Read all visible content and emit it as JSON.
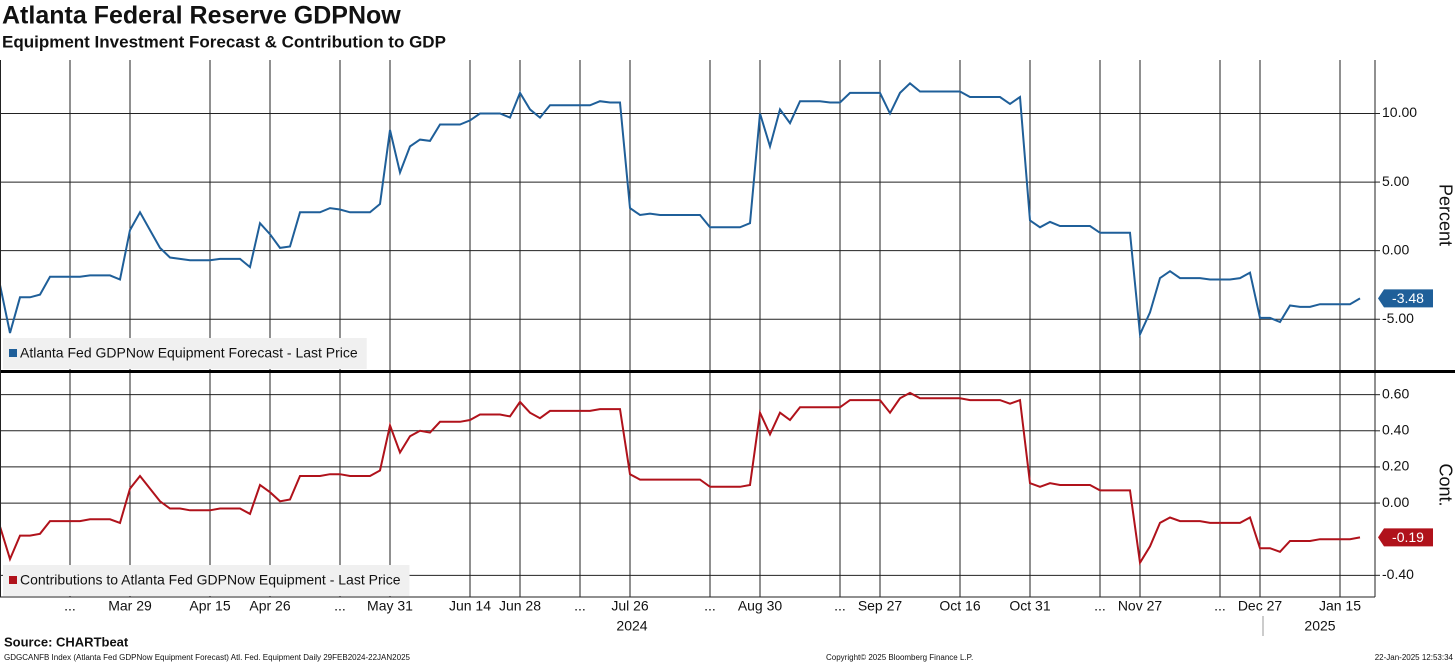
{
  "chart_data": [
    {
      "type": "line",
      "title": "Atlanta Federal Reserve GDPNow",
      "subtitle": "Equipment Investment Forecast & Contribution to GDP",
      "ylabel": "Percent",
      "ylim": [
        -8.7,
        13.9
      ],
      "yticks": [
        {
          "value": -5,
          "label": "-5.00"
        },
        {
          "value": 0,
          "label": "0.00"
        },
        {
          "value": 5,
          "label": "5.00"
        },
        {
          "value": 10,
          "label": "10.00"
        }
      ],
      "grid": true,
      "legend": "lower left",
      "series": [
        {
          "name": "Atlanta Fed GDPNow Equipment Forecast - Last Price",
          "color": "#1f5f99",
          "values": [
            -2.5,
            -6.0,
            -3.4,
            -3.4,
            -3.2,
            -1.9,
            -1.9,
            -1.9,
            -1.9,
            -1.8,
            -1.8,
            -1.8,
            -2.1,
            1.5,
            2.8,
            1.5,
            0.2,
            -0.5,
            -0.6,
            -0.7,
            -0.7,
            -0.7,
            -0.6,
            -0.6,
            -0.6,
            -1.2,
            2.0,
            1.2,
            0.2,
            0.3,
            2.8,
            2.8,
            2.8,
            3.1,
            3.0,
            2.8,
            2.8,
            2.8,
            3.4,
            8.8,
            5.7,
            7.6,
            8.1,
            8.0,
            9.2,
            9.2,
            9.2,
            9.5,
            10.0,
            10.0,
            10.0,
            9.7,
            11.5,
            10.3,
            9.7,
            10.6,
            10.6,
            10.6,
            10.6,
            10.6,
            10.9,
            10.8,
            10.8,
            3.1,
            2.6,
            2.7,
            2.6,
            2.6,
            2.6,
            2.6,
            2.6,
            1.7,
            1.7,
            1.7,
            1.7,
            2.0,
            10.0,
            7.6,
            10.3,
            9.3,
            10.9,
            10.9,
            10.9,
            10.8,
            10.8,
            11.5,
            11.5,
            11.5,
            11.5,
            10.0,
            11.5,
            12.2,
            11.6,
            11.6,
            11.6,
            11.6,
            11.6,
            11.2,
            11.2,
            11.2,
            11.2,
            10.7,
            11.2,
            2.2,
            1.7,
            2.1,
            1.8,
            1.8,
            1.8,
            1.8,
            1.3,
            1.3,
            1.3,
            1.3,
            -6.1,
            -4.5,
            -2.0,
            -1.5,
            -2.0,
            -2.0,
            -2.0,
            -2.1,
            -2.1,
            -2.1,
            -2.0,
            -1.6,
            -4.9,
            -4.9,
            -5.2,
            -4.0,
            -4.1,
            -4.1,
            -3.9,
            -3.9,
            -3.9,
            -3.9,
            -3.48
          ]
        }
      ]
    },
    {
      "type": "line",
      "ylabel": "Cont.",
      "ylim": [
        -0.52,
        0.72
      ],
      "yticks": [
        {
          "value": -0.4,
          "label": "-0.40"
        },
        {
          "value": 0,
          "label": "0.00"
        },
        {
          "value": 0.2,
          "label": "0.20"
        },
        {
          "value": 0.4,
          "label": "0.40"
        },
        {
          "value": 0.6,
          "label": "0.60"
        }
      ],
      "grid": true,
      "legend": "lower left",
      "categories": [
        null,
        null,
        null,
        null,
        null,
        null,
        null,
        "...",
        null,
        null,
        null,
        null,
        null,
        "Mar 29",
        null,
        null,
        null,
        null,
        null,
        null,
        null,
        "Apr 15",
        null,
        null,
        null,
        null,
        null,
        "Apr 26",
        null,
        null,
        null,
        null,
        null,
        null,
        "...",
        null,
        null,
        null,
        null,
        "May 31",
        null,
        null,
        null,
        null,
        null,
        null,
        null,
        "Jun 14",
        null,
        null,
        null,
        null,
        "Jun 28",
        null,
        null,
        null,
        null,
        null,
        "...",
        null,
        null,
        null,
        null,
        "Jul 26",
        null,
        null,
        null,
        null,
        null,
        null,
        null,
        "...",
        null,
        null,
        null,
        null,
        "Aug 30",
        null,
        null,
        null,
        null,
        null,
        null,
        null,
        "...",
        null,
        null,
        null,
        "Sep 27",
        null,
        null,
        null,
        null,
        null,
        null,
        null,
        "Oct 16",
        null,
        null,
        null,
        null,
        null,
        null,
        "Oct 31",
        null,
        null,
        null,
        null,
        null,
        null,
        "...",
        null,
        null,
        null,
        "Nov 27",
        null,
        null,
        null,
        null,
        null,
        null,
        null,
        "...",
        null,
        null,
        null,
        "Dec 27",
        null,
        null,
        null,
        null,
        null,
        null,
        null,
        "Jan 15",
        null,
        null
      ],
      "x_year_labels": [
        "2024",
        "2025"
      ],
      "series": [
        {
          "name": "Contributions to Atlanta Fed GDPNow Equipment - Last Price",
          "color": "#b0121b",
          "values": [
            -0.13,
            -0.31,
            -0.18,
            -0.18,
            -0.17,
            -0.1,
            -0.1,
            -0.1,
            -0.1,
            -0.09,
            -0.09,
            -0.09,
            -0.11,
            0.08,
            0.15,
            0.08,
            0.01,
            -0.03,
            -0.03,
            -0.04,
            -0.04,
            -0.04,
            -0.03,
            -0.03,
            -0.03,
            -0.06,
            0.1,
            0.06,
            0.01,
            0.02,
            0.15,
            0.15,
            0.15,
            0.16,
            0.16,
            0.15,
            0.15,
            0.15,
            0.18,
            0.43,
            0.28,
            0.37,
            0.4,
            0.39,
            0.45,
            0.45,
            0.45,
            0.46,
            0.49,
            0.49,
            0.49,
            0.48,
            0.56,
            0.5,
            0.47,
            0.51,
            0.51,
            0.51,
            0.51,
            0.51,
            0.52,
            0.52,
            0.52,
            0.16,
            0.13,
            0.13,
            0.13,
            0.13,
            0.13,
            0.13,
            0.13,
            0.09,
            0.09,
            0.09,
            0.09,
            0.1,
            0.5,
            0.38,
            0.5,
            0.46,
            0.53,
            0.53,
            0.53,
            0.53,
            0.53,
            0.57,
            0.57,
            0.57,
            0.57,
            0.5,
            0.58,
            0.61,
            0.58,
            0.58,
            0.58,
            0.58,
            0.58,
            0.57,
            0.57,
            0.57,
            0.57,
            0.55,
            0.57,
            0.11,
            0.09,
            0.11,
            0.1,
            0.1,
            0.1,
            0.1,
            0.07,
            0.07,
            0.07,
            0.07,
            -0.33,
            -0.24,
            -0.11,
            -0.08,
            -0.1,
            -0.1,
            -0.1,
            -0.11,
            -0.11,
            -0.11,
            -0.11,
            -0.08,
            -0.25,
            -0.25,
            -0.27,
            -0.21,
            -0.21,
            -0.21,
            -0.2,
            -0.2,
            -0.2,
            -0.2,
            -0.19
          ]
        }
      ]
    }
  ],
  "source": "Source: CHARTbeat",
  "footer": {
    "left": "GDGCANFB Index (Atlanta Fed GDPNow Equipment Forecast) Atl. Fed. Equipment  Daily 29FEB2024-22JAN2025",
    "center": "Copyright© 2025 Bloomberg Finance L.P.",
    "right": "22-Jan-2025 12:53:34"
  }
}
